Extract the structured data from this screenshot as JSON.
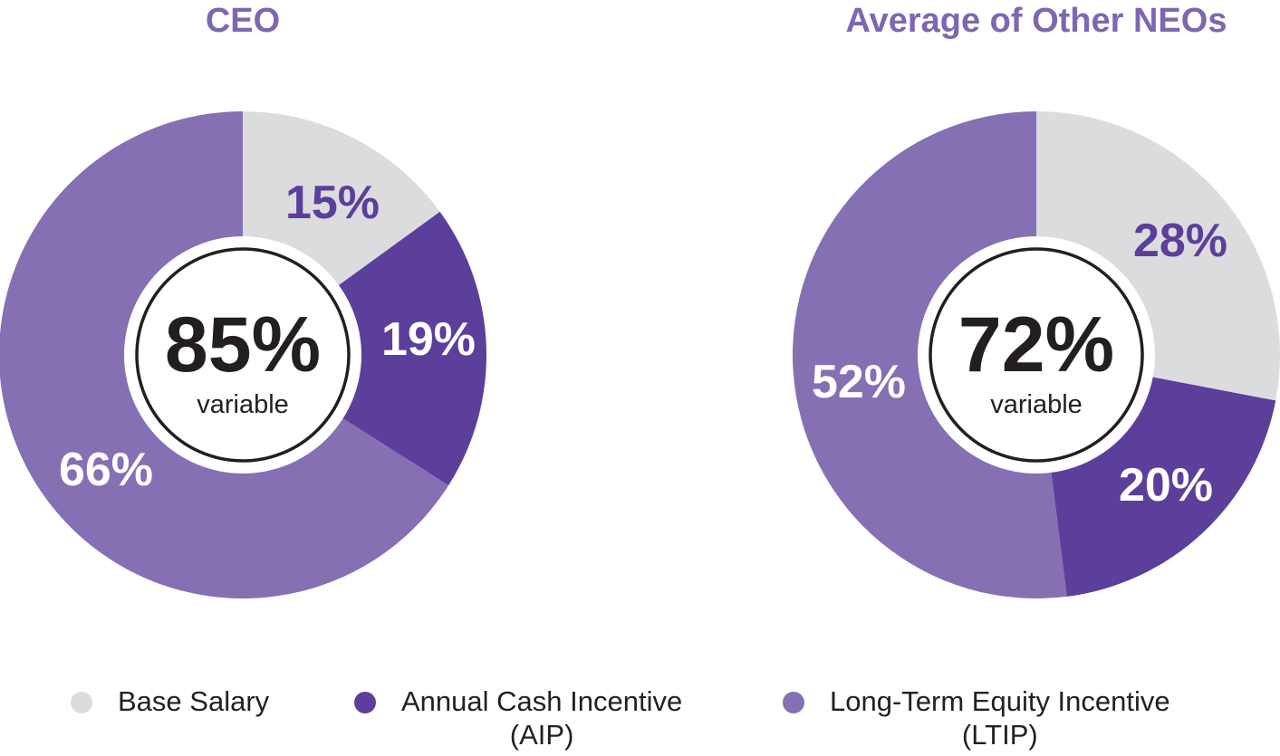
{
  "chart_data": [
    {
      "type": "pie",
      "title": "CEO",
      "categories": [
        "Base Salary",
        "Annual Cash Incentive (AIP)",
        "Long-Term Equity Incentive (LTIP)"
      ],
      "values": [
        15,
        19,
        66
      ],
      "value_labels": [
        "15%",
        "19%",
        "66%"
      ],
      "center_value": "85%",
      "center_label": "variable"
    },
    {
      "type": "pie",
      "title": "Average of Other NEOs",
      "categories": [
        "Base Salary",
        "Annual Cash Incentive (AIP)",
        "Long-Term Equity Incentive (LTIP)"
      ],
      "values": [
        28,
        20,
        52
      ],
      "value_labels": [
        "28%",
        "20%",
        "52%"
      ],
      "center_value": "72%",
      "center_label": "variable"
    }
  ],
  "colors": {
    "title": "#7d67b1",
    "base_salary": "#dcdcde",
    "aip": "#5b3f9b",
    "ltip": "#8470b3",
    "label_on_light": "#5b3f9b",
    "label_on_dark": "#ffffff"
  },
  "legend": {
    "items": [
      {
        "name": "base-salary",
        "line1": "Base Salary",
        "line2": ""
      },
      {
        "name": "aip",
        "line1": "Annual Cash Incentive",
        "line2": "(AIP)"
      },
      {
        "name": "ltip",
        "line1": "Long-Term Equity Incentive",
        "line2": "(LTIP)"
      }
    ]
  }
}
